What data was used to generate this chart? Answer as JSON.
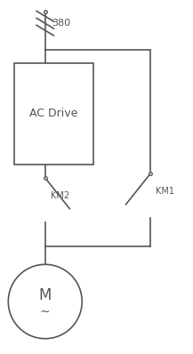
{
  "bg_color": "#ffffff",
  "line_color": "#555555",
  "text_color": "#555555",
  "label_380": "380",
  "label_km1": "KM1",
  "label_km2": "KM2",
  "label_acdrive": "AC Drive",
  "label_M": "M",
  "label_tilde": "~",
  "figw": 2.17,
  "figh": 3.98,
  "dpi": 100
}
